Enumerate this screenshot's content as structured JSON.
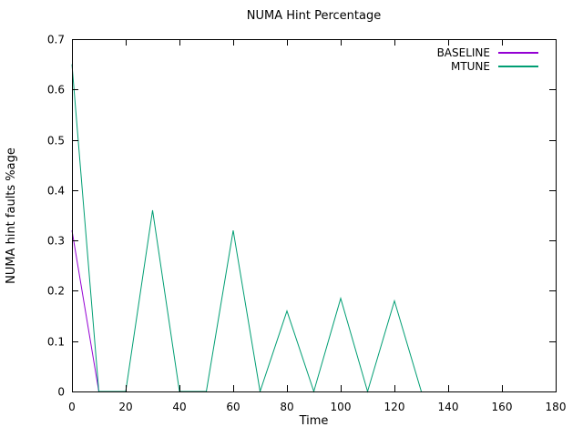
{
  "chart_data": {
    "type": "line",
    "title": "NUMA Hint Percentage",
    "xlabel": "Time",
    "ylabel": "NUMA hint faults %age",
    "xlim": [
      0,
      180
    ],
    "ylim": [
      0,
      0.7
    ],
    "x_ticks": [
      0,
      20,
      40,
      60,
      80,
      100,
      120,
      140,
      160,
      180
    ],
    "x_tick_labels": [
      "0",
      "20",
      "40",
      "60",
      "80",
      "100",
      "120",
      "140",
      "160",
      "180"
    ],
    "y_ticks": [
      0,
      0.1,
      0.2,
      0.3,
      0.4,
      0.5,
      0.6,
      0.7
    ],
    "y_tick_labels": [
      "0",
      "0.1",
      "0.2",
      "0.3",
      "0.4",
      "0.5",
      "0.6",
      "0.7"
    ],
    "grid": false,
    "legend_position": "top-right-inside",
    "series": [
      {
        "name": "BASELINE",
        "color": "#9400d3",
        "x": [
          0,
          10
        ],
        "y": [
          0.32,
          0
        ]
      },
      {
        "name": "MTUNE",
        "color": "#009e73",
        "x": [
          0,
          10,
          20,
          30,
          40,
          50,
          60,
          70,
          80,
          90,
          100,
          110,
          120,
          130
        ],
        "y": [
          0.65,
          0,
          0,
          0.36,
          0,
          0,
          0.32,
          0,
          0.16,
          0,
          0.185,
          0,
          0.18,
          0
        ]
      }
    ],
    "colors": {
      "background": "#ffffff",
      "axis": "#000000",
      "text": "#000000"
    }
  }
}
